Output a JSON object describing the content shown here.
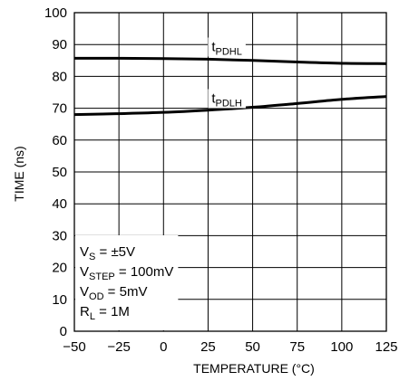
{
  "chart_data": {
    "type": "line",
    "xlabel": "TEMPERATURE (°C)",
    "ylabel": "TIME (ns)",
    "xlim": [
      -50,
      125
    ],
    "ylim": [
      0,
      100
    ],
    "xticks": [
      "−50",
      "−25",
      "0",
      "25",
      "50",
      "75",
      "100",
      "125"
    ],
    "yticks": [
      "0",
      "10",
      "20",
      "30",
      "40",
      "50",
      "60",
      "70",
      "80",
      "90",
      "100"
    ],
    "grid": true,
    "series": [
      {
        "name_main": "t",
        "name_sub": "PDHL",
        "x": [
          -50,
          -25,
          0,
          25,
          50,
          75,
          100,
          125
        ],
        "y": [
          85.7,
          85.7,
          85.6,
          85.4,
          85.0,
          84.5,
          84.1,
          84.0
        ]
      },
      {
        "name_main": "t",
        "name_sub": "PDLH",
        "x": [
          -50,
          -25,
          0,
          25,
          50,
          75,
          100,
          125
        ],
        "y": [
          68.0,
          68.3,
          68.7,
          69.4,
          70.3,
          71.5,
          72.8,
          73.7
        ]
      }
    ],
    "conditions": [
      {
        "main": "V",
        "sub": "S",
        "rest": " = ±5V"
      },
      {
        "main": "V",
        "sub": "STEP",
        "rest": " = 100mV"
      },
      {
        "main": "V",
        "sub": "OD",
        "rest": " = 5mV"
      },
      {
        "main": "R",
        "sub": "L",
        "rest": " = 1M"
      }
    ]
  }
}
